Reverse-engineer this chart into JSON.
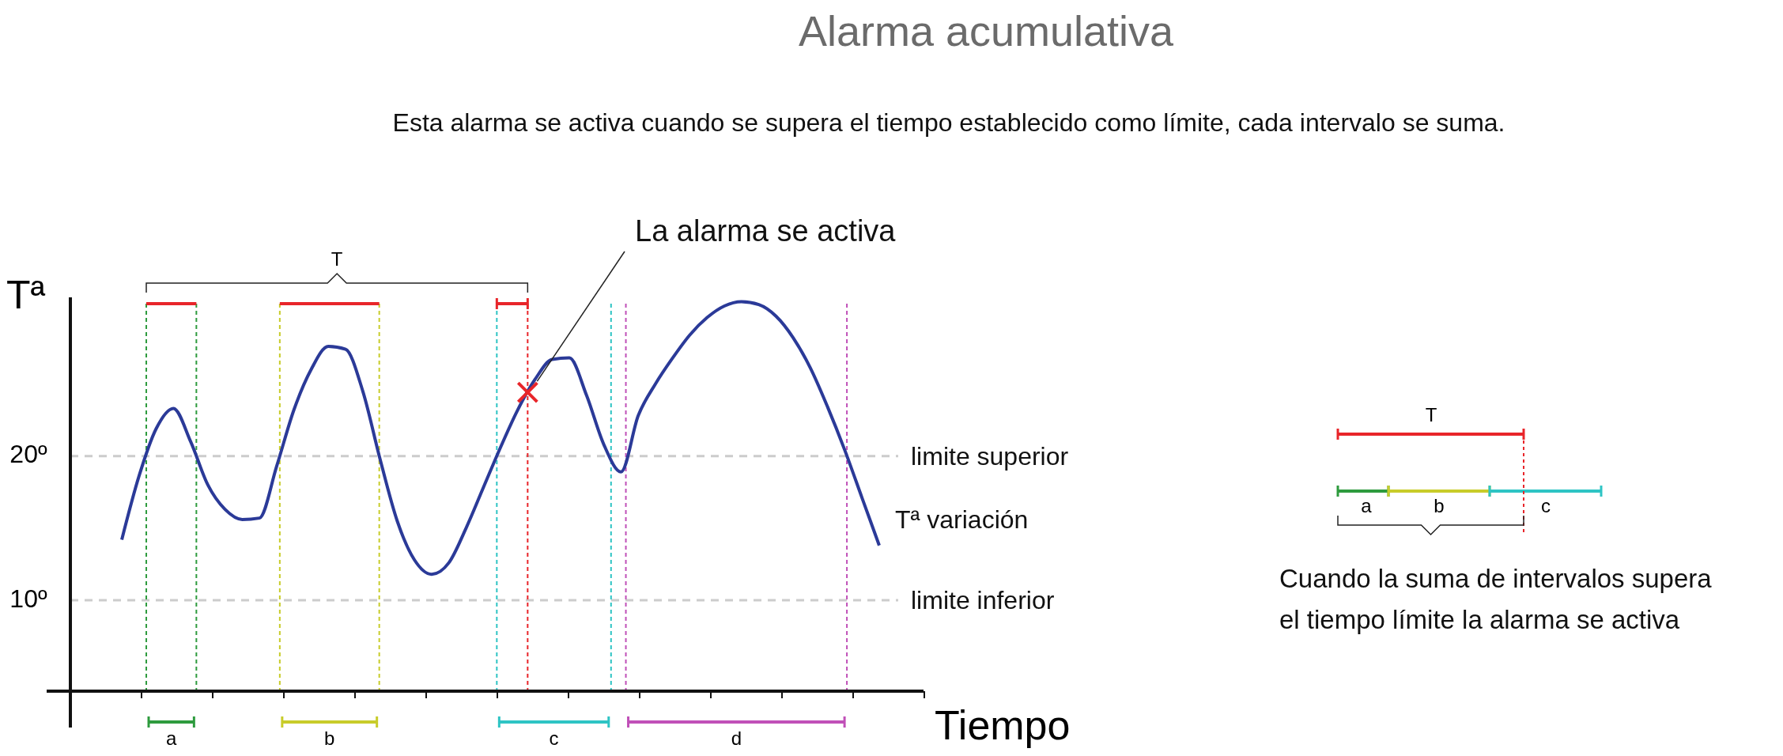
{
  "chart_data": {
    "type": "line",
    "title": "Alarma acumulativa",
    "subtitle": "Esta alarma se activa cuando se supera el tiempo establecido como límite, cada intervalo se suma.",
    "xlabel": "Tiempo",
    "ylabel": "Tª",
    "categories": [
      null,
      null,
      null,
      null,
      null,
      null,
      null,
      null,
      null,
      null,
      null,
      null,
      null,
      null,
      null,
      null,
      null,
      null,
      null,
      null,
      null,
      null,
      null,
      null,
      null,
      null,
      null,
      null,
      null,
      null,
      null,
      null,
      null,
      null,
      null,
      null,
      null,
      null,
      null,
      null,
      null,
      null,
      null,
      null,
      null
    ],
    "series": [
      {
        "name": "Tª variación",
        "color": "#2b3a98",
        "values": [
          14.2,
          18.6,
          21.9,
          23.3,
          21.0,
          18.0,
          16.3,
          15.6,
          15.7,
          19.3,
          23.2,
          26.0,
          27.6,
          27.4,
          24.5,
          19.8,
          15.5,
          12.8,
          11.8,
          12.6,
          15.0,
          17.8,
          20.6,
          23.2,
          25.3,
          26.7,
          26.8,
          24.2,
          20.8,
          18.9,
          22.8,
          25.0,
          26.8,
          28.4,
          29.6,
          30.4,
          30.7,
          30.5,
          29.7,
          28.2,
          26.1,
          23.4,
          20.4,
          17.1,
          13.8
        ]
      }
    ],
    "ylim": [
      3.7,
      31
    ],
    "yticks": [
      {
        "value": 10,
        "label": "10º"
      },
      {
        "value": 20,
        "label": "20º"
      }
    ],
    "tick_labels": "y",
    "ref_lines": [
      {
        "axis": "y",
        "value": 20,
        "label": "limite superior",
        "color": "#cccccc",
        "line_style": "dashed"
      },
      {
        "axis": "y",
        "value": 10,
        "label": "limite inferior",
        "color": "#cccccc",
        "line_style": "dashed"
      }
    ],
    "annotations": [
      "La alarma se activa",
      "T",
      "a",
      "b",
      "c",
      "d",
      "T",
      "a",
      "b",
      "c",
      "Cuando la suma de intervalos supera el tiempo límite la alarma se activa"
    ]
  }
}
